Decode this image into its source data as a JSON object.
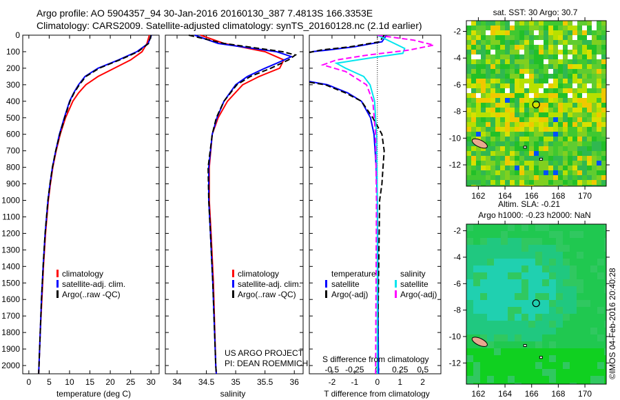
{
  "title_line1": "Argo profile: AO 5904357_94 30-Jan-2016 20160130_387 7.4813S 166.3353E",
  "title_line2": "Climatology: CARS2009. Satellite-adjusted climatology: synTS_20160128.nc (2.1d earlier)",
  "colors": {
    "climatology": "#ff0000",
    "satellite": "#0000ff",
    "argo": "#000000",
    "sal_satellite": "#00e5ee",
    "sal_argo": "#ff00ff"
  },
  "depth_ticks": [
    0,
    100,
    200,
    300,
    400,
    500,
    600,
    700,
    800,
    900,
    1000,
    1100,
    1200,
    1300,
    1400,
    1500,
    1600,
    1700,
    1800,
    1900,
    2000
  ],
  "credit": {
    "line1": "US ARGO PROJECT",
    "line2": "PI: DEAN ROEMMICH"
  },
  "timestamp": "©IMOS 04-Feb-2016 20:40:28",
  "legend_tp": {
    "clim": "climatology",
    "sat": "satellite-adj. clim.",
    "argo": "Argo(..raw -QC)"
  },
  "legend_diff": {
    "temp_head": "temperature",
    "sal_head": "salinity",
    "sat": "satellite",
    "argo": "Argo(-adj)"
  },
  "chart_data": [
    {
      "type": "line",
      "id": "temperature",
      "xlabel": "temperature (deg C)",
      "ylabel": "depth",
      "xlim": [
        -1.5,
        32
      ],
      "ylim": [
        2050,
        0
      ],
      "xticks": [
        0,
        5,
        10,
        15,
        20,
        25,
        30
      ],
      "series": [
        {
          "name": "climatology",
          "depth": [
            0,
            50,
            100,
            150,
            200,
            250,
            300,
            350,
            400,
            500,
            600,
            700,
            800,
            900,
            1000,
            1200,
            1400,
            1600,
            1800,
            2000,
            2050
          ],
          "values": [
            29.6,
            29,
            27.8,
            25,
            21,
            17,
            14,
            12.2,
            10.8,
            9,
            7.7,
            6.7,
            5.9,
            5.3,
            4.8,
            4.1,
            3.6,
            3.2,
            2.8,
            2.5,
            2.4
          ]
        },
        {
          "name": "satellite-adj. clim.",
          "depth": [
            0,
            50,
            100,
            150,
            200,
            250,
            300,
            350,
            400,
            500,
            600,
            700,
            800,
            900,
            1000,
            1200,
            1400,
            1600,
            1800,
            2000,
            2050
          ],
          "values": [
            30.1,
            29.3,
            26.5,
            22,
            17,
            13.8,
            12.2,
            11,
            10,
            8.7,
            7.5,
            6.6,
            5.8,
            5.2,
            4.7,
            4,
            3.5,
            3.1,
            2.8,
            2.5,
            2.4
          ]
        },
        {
          "name": "Argo(..raw -QC)",
          "depth": [
            0,
            50,
            100,
            150,
            200,
            250,
            300,
            350,
            400,
            500,
            600,
            700,
            800,
            900,
            1000,
            1200,
            1400,
            1600,
            1800,
            2000,
            2050
          ],
          "values": [
            30,
            29.4,
            26.8,
            22.3,
            17.3,
            14,
            12.4,
            11.1,
            10.1,
            8.8,
            7.6,
            6.6,
            5.8,
            5.2,
            4.7,
            4,
            3.5,
            3.1,
            2.8,
            2.5,
            2.4
          ]
        }
      ]
    },
    {
      "type": "line",
      "id": "salinity",
      "xlabel": "salinity",
      "ylabel": "depth",
      "xlim": [
        33.8,
        36.15
      ],
      "ylim": [
        2050,
        0
      ],
      "xticks": [
        34,
        34.5,
        35,
        35.5,
        36
      ],
      "series": [
        {
          "name": "climatology",
          "depth": [
            0,
            50,
            100,
            150,
            200,
            250,
            300,
            400,
            500,
            600,
            800,
            1000,
            1200,
            1500,
            2000,
            2050
          ],
          "values": [
            34.4,
            34.8,
            35.5,
            35.82,
            35.75,
            35.4,
            35.12,
            34.86,
            34.7,
            34.6,
            34.55,
            34.55,
            34.58,
            34.62,
            34.66,
            34.67
          ]
        },
        {
          "name": "satellite-adj. clim.",
          "depth": [
            0,
            50,
            100,
            130,
            170,
            200,
            250,
            300,
            400,
            500,
            600,
            800,
            1000,
            1200,
            1500,
            2000,
            2050
          ],
          "values": [
            34.3,
            34.7,
            35.7,
            35.95,
            35.7,
            35.5,
            35.2,
            35,
            34.8,
            34.68,
            34.6,
            34.54,
            34.54,
            34.57,
            34.61,
            34.66,
            34.67
          ]
        },
        {
          "name": "Argo(..raw -QC)",
          "depth": [
            0,
            50,
            100,
            120,
            150,
            200,
            250,
            300,
            400,
            500,
            600,
            800,
            1000,
            1200,
            1500,
            2000,
            2050
          ],
          "values": [
            34.2,
            34.8,
            35.8,
            36.02,
            35.9,
            35.6,
            35.25,
            35.02,
            34.8,
            34.67,
            34.6,
            34.53,
            34.54,
            34.57,
            34.61,
            34.66,
            34.67
          ]
        }
      ]
    },
    {
      "type": "line",
      "id": "difference",
      "xlabel": "T difference from climatology",
      "x2label": "S difference from climatology",
      "xlim": [
        -3,
        2.8
      ],
      "ylim": [
        2050,
        0
      ],
      "xticks": [
        -2,
        -1,
        0,
        1,
        2
      ],
      "x2ticks": [
        -0.5,
        -0.25,
        0,
        0.25,
        0.5
      ],
      "series": [
        {
          "name": "temperature satellite",
          "axis": "T",
          "depth": [
            0,
            40,
            70,
            90,
            100,
            null,
            280,
            300,
            350,
            400,
            500,
            600,
            800,
            1000,
            1500,
            2050
          ],
          "values": [
            0.4,
            0.2,
            -1,
            -2.2,
            -2.9,
            null,
            -3,
            -2.2,
            -1.3,
            -0.7,
            -0.3,
            -0.15,
            -0.05,
            0,
            0.02,
            0.05
          ]
        },
        {
          "name": "temperature Argo(-adj)",
          "axis": "T",
          "depth": [
            0,
            40,
            70,
            90,
            105,
            null,
            285,
            300,
            350,
            400,
            500,
            600,
            700,
            800,
            900,
            1000,
            1500,
            2050
          ],
          "values": [
            0.3,
            0.1,
            -1.2,
            -2.5,
            -3,
            null,
            -3,
            -2.3,
            -1.4,
            -0.7,
            -0.2,
            0.2,
            0.3,
            0.25,
            0.2,
            0.1,
            0.05,
            0
          ]
        },
        {
          "name": "salinity satellite",
          "axis": "S",
          "depth": [
            0,
            40,
            80,
            110,
            140,
            170,
            200,
            250,
            300,
            400,
            600,
            1000,
            2050
          ],
          "values": [
            0,
            0.15,
            0.3,
            0.28,
            -0.1,
            -0.45,
            -0.35,
            -0.15,
            -0.08,
            -0.03,
            -0.01,
            0,
            0
          ]
        },
        {
          "name": "salinity Argo(-adj)",
          "axis": "S",
          "depth": [
            0,
            30,
            60,
            90,
            120,
            150,
            180,
            220,
            300,
            400,
            600,
            1000,
            2050
          ],
          "values": [
            0,
            0.4,
            0.62,
            0.35,
            -0.1,
            -0.45,
            -0.6,
            -0.35,
            -0.12,
            -0.05,
            -0.02,
            -0.01,
            -0.02
          ]
        }
      ]
    },
    {
      "type": "heatmap",
      "id": "sst_map",
      "title": "sat. SST: 30 Argo: 30.7",
      "xticks": [
        162,
        164,
        166,
        168,
        170
      ],
      "yticks": [
        -2,
        -4,
        -6,
        -8,
        -10,
        -12
      ],
      "xlim": [
        161.1,
        171.6
      ],
      "ylim": [
        -13.6,
        -1.2
      ],
      "argo_position": [
        166.3353,
        -7.4813
      ]
    },
    {
      "type": "heatmap",
      "id": "sla_map",
      "title_line1": "Altim. SLA: -0.21",
      "title_line2": "Argo h1000: -0.23 h2000: NaN",
      "xticks": [
        162,
        164,
        166,
        168,
        170
      ],
      "yticks": [
        -2,
        -4,
        -6,
        -8,
        -10,
        -12
      ],
      "xlim": [
        161.1,
        171.6
      ],
      "ylim": [
        -13.6,
        -1.5
      ],
      "argo_position": [
        166.3353,
        -7.4813
      ]
    }
  ]
}
